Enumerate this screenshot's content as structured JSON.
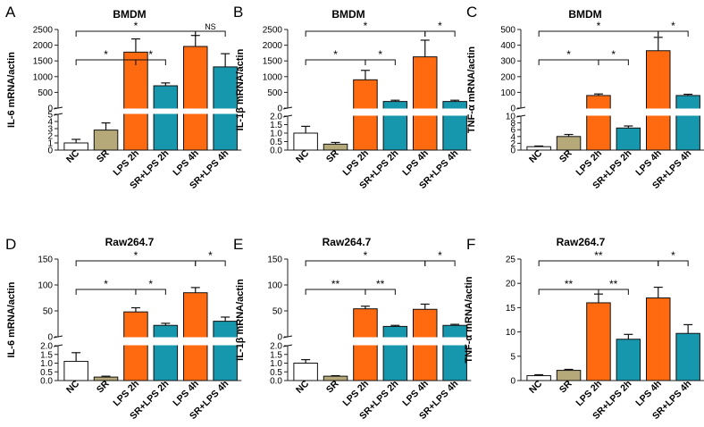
{
  "colors": {
    "NC": "#ffffff",
    "SR": "#b5a97a",
    "LPS": "#ff6a10",
    "SRLPS": "#1797ad",
    "axis": "#222222"
  },
  "categories": [
    "NC",
    "SR",
    "LPS 2h",
    "SR+LPS 2h",
    "LPS 4h",
    "SR+LPS 4h"
  ],
  "chart_data": [
    {
      "panel": "A",
      "type": "bar",
      "title": "BMDM",
      "ylabel": "IL-6 mRNA/actin",
      "categories": [
        "NC",
        "SR",
        "LPS 2h",
        "SR+LPS 2h",
        "LPS 4h",
        "SR+LPS 4h"
      ],
      "values": [
        1.0,
        2.8,
        1780,
        710,
        1960,
        1310
      ],
      "errors": [
        0.5,
        1.0,
        420,
        90,
        350,
        420
      ],
      "y_break": {
        "lower": [
          0,
          5
        ],
        "upper": [
          0,
          2500
        ]
      },
      "lower_ticks": [
        "0",
        "1",
        "2",
        "3",
        "4",
        "5"
      ],
      "upper_ticks": [
        "0",
        "500",
        "1000",
        "1500",
        "2000",
        "2500"
      ],
      "comparisons": [
        {
          "from": 0,
          "to": 4,
          "label": "*"
        },
        {
          "from": 0,
          "to": 2,
          "label": "*"
        },
        {
          "from": 2,
          "to": 3,
          "label": "*"
        },
        {
          "from": 4,
          "to": 5,
          "label": "NS"
        }
      ]
    },
    {
      "panel": "B",
      "type": "bar",
      "title": "BMDM",
      "ylabel": "IL-1β mRNA/actin",
      "categories": [
        "NC",
        "SR",
        "LPS 2h",
        "SR+LPS 2h",
        "LPS 4h",
        "SR+LPS 4h"
      ],
      "values": [
        1.0,
        0.35,
        900,
        210,
        1630,
        210
      ],
      "errors": [
        0.4,
        0.1,
        300,
        40,
        530,
        40
      ],
      "y_break": {
        "lower": [
          0,
          2
        ],
        "upper": [
          0,
          2500
        ]
      },
      "lower_ticks": [
        "0.0",
        "0.5",
        "1.0",
        "1.5",
        "2.0"
      ],
      "upper_ticks": [
        "0",
        "500",
        "1000",
        "1500",
        "2000",
        "2500"
      ],
      "comparisons": [
        {
          "from": 0,
          "to": 4,
          "label": "*"
        },
        {
          "from": 0,
          "to": 2,
          "label": "*"
        },
        {
          "from": 2,
          "to": 3,
          "label": "*"
        },
        {
          "from": 4,
          "to": 5,
          "label": "*"
        }
      ]
    },
    {
      "panel": "C",
      "type": "bar",
      "title": "BMDM",
      "ylabel": "TNF-α mRNA/actin",
      "categories": [
        "NC",
        "SR",
        "LPS 2h",
        "SR+LPS 2h",
        "LPS 4h",
        "SR+LPS 4h"
      ],
      "values": [
        1.0,
        4.0,
        80,
        6.5,
        365,
        80
      ],
      "errors": [
        0.2,
        0.6,
        10,
        0.6,
        85,
        8
      ],
      "y_break": {
        "lower": [
          0,
          10
        ],
        "upper": [
          0,
          500
        ]
      },
      "lower_ticks": [
        "0",
        "2",
        "4",
        "6",
        "8",
        "10"
      ],
      "upper_ticks": [
        "0",
        "100",
        "200",
        "300",
        "400",
        "500"
      ],
      "comparisons": [
        {
          "from": 0,
          "to": 4,
          "label": "*"
        },
        {
          "from": 0,
          "to": 2,
          "label": "*"
        },
        {
          "from": 2,
          "to": 3,
          "label": "*"
        },
        {
          "from": 4,
          "to": 5,
          "label": "*"
        }
      ]
    },
    {
      "panel": "D",
      "type": "bar",
      "title": "Raw264.7",
      "ylabel": "IL-6 mRNA/actin",
      "categories": [
        "NC",
        "SR",
        "LPS 2h",
        "SR+LPS 2h",
        "LPS 4h",
        "SR+LPS 4h"
      ],
      "values": [
        1.1,
        0.2,
        48,
        22,
        85,
        30
      ],
      "errors": [
        0.5,
        0.05,
        8,
        4,
        10,
        8
      ],
      "y_break": {
        "lower": [
          0,
          2
        ],
        "upper": [
          0,
          150
        ]
      },
      "lower_ticks": [
        "0.0",
        "0.5",
        "1.0",
        "1.5",
        "2.0"
      ],
      "upper_ticks": [
        "0",
        "50",
        "100",
        "150"
      ],
      "comparisons": [
        {
          "from": 0,
          "to": 4,
          "label": "*"
        },
        {
          "from": 0,
          "to": 2,
          "label": "*"
        },
        {
          "from": 2,
          "to": 3,
          "label": "*"
        },
        {
          "from": 4,
          "to": 5,
          "label": "*"
        }
      ]
    },
    {
      "panel": "E",
      "type": "bar",
      "title": "Raw264.7",
      "ylabel": "IL-1β mRNA/actin",
      "categories": [
        "NC",
        "SR",
        "LPS 2h",
        "SR+LPS 2h",
        "LPS 4h",
        "SR+LPS 4h"
      ],
      "values": [
        1.0,
        0.25,
        54,
        20,
        53,
        22
      ],
      "errors": [
        0.2,
        0.03,
        5,
        2,
        10,
        2
      ],
      "y_break": {
        "lower": [
          0,
          2
        ],
        "upper": [
          0,
          150
        ]
      },
      "lower_ticks": [
        "0.0",
        "0.5",
        "1.0",
        "1.5",
        "2.0"
      ],
      "upper_ticks": [
        "0",
        "50",
        "100",
        "150"
      ],
      "comparisons": [
        {
          "from": 0,
          "to": 4,
          "label": "*"
        },
        {
          "from": 0,
          "to": 2,
          "label": "**"
        },
        {
          "from": 2,
          "to": 3,
          "label": "**"
        },
        {
          "from": 4,
          "to": 5,
          "label": "*"
        }
      ]
    },
    {
      "panel": "F",
      "type": "bar",
      "title": "Raw264.7",
      "ylabel": "TNF-α mRNA/actin",
      "categories": [
        "NC",
        "SR",
        "LPS 2h",
        "SR+LPS 2h",
        "LPS 4h",
        "SR+LPS 4h"
      ],
      "values": [
        1.0,
        2.1,
        16.0,
        8.5,
        17.0,
        9.7
      ],
      "errors": [
        0.2,
        0.2,
        1.8,
        1.0,
        2.2,
        1.8
      ],
      "ylim": [
        0,
        25
      ],
      "ticks": [
        "0",
        "5",
        "10",
        "15",
        "20",
        "25"
      ],
      "comparisons": [
        {
          "from": 0,
          "to": 4,
          "label": "**"
        },
        {
          "from": 0,
          "to": 2,
          "label": "**"
        },
        {
          "from": 2,
          "to": 3,
          "label": "**"
        },
        {
          "from": 4,
          "to": 5,
          "label": "*"
        }
      ]
    }
  ]
}
